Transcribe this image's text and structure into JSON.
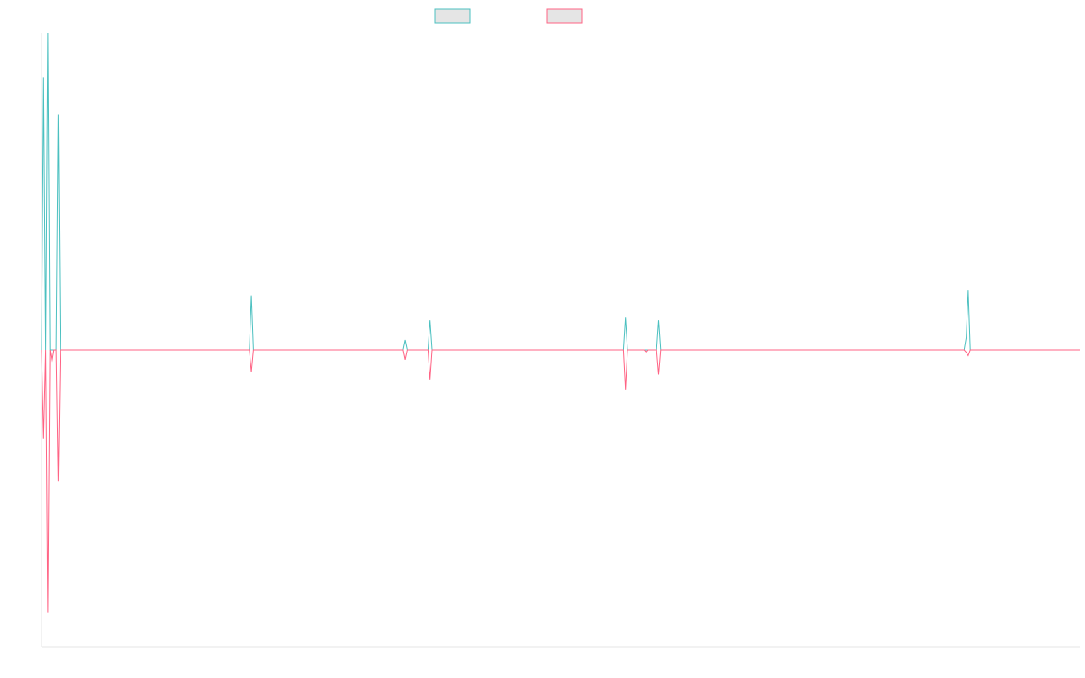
{
  "chart_data": {
    "type": "line",
    "title": "",
    "xlabel": "",
    "ylabel": "",
    "legend_position": "top-center",
    "grid": false,
    "ylim": [
      -6.0,
      6.4
    ],
    "colors": {
      "series_1": "#4bc0c0",
      "series_2": "#ff6384",
      "legend_fill": "#e5e5e5",
      "axis": "#e6e6e6"
    },
    "series": [
      {
        "name": "",
        "x": [
          0.0,
          0.5,
          1.0,
          1.5,
          2.0,
          2.5,
          3.0,
          3.5,
          4.0,
          4.5,
          5.0,
          5.5,
          6.0,
          50.0,
          50.5,
          51.0,
          51.5,
          52.0,
          87.0,
          87.5,
          88.0,
          93.0,
          93.5,
          94.0,
          140.0,
          140.5,
          141.0,
          145.0,
          145.5,
          146.0,
          148.0,
          148.5,
          149.0,
          222.0,
          222.5,
          223.0,
          223.5,
          224.0,
          224.5,
          250.0
        ],
        "values": [
          0.0,
          5.5,
          0.0,
          6.4,
          0.0,
          0.0,
          0.0,
          0.0,
          4.75,
          0.0,
          0.0,
          0.0,
          0.0,
          0.0,
          1.1,
          0.0,
          0.0,
          0.0,
          0.0,
          0.2,
          0.0,
          0.0,
          0.6,
          0.0,
          0.0,
          0.65,
          0.0,
          0.0,
          0.0,
          0.0,
          0.0,
          0.6,
          0.0,
          0.0,
          0.25,
          1.2,
          0.0,
          0.0,
          0.0,
          0.0
        ]
      },
      {
        "name": "",
        "x": [
          0.0,
          0.5,
          1.0,
          1.5,
          2.0,
          2.5,
          3.0,
          3.5,
          4.0,
          4.5,
          5.0,
          5.5,
          6.0,
          50.0,
          50.5,
          51.0,
          51.5,
          52.0,
          87.0,
          87.5,
          88.0,
          93.0,
          93.5,
          94.0,
          140.0,
          140.5,
          141.0,
          145.0,
          145.5,
          146.0,
          148.0,
          148.5,
          149.0,
          222.0,
          222.5,
          223.0,
          223.5,
          224.0,
          224.5,
          250.0
        ],
        "values": [
          0.0,
          -1.8,
          0.0,
          -5.3,
          0.0,
          -0.25,
          0.0,
          0.0,
          -2.65,
          0.0,
          0.0,
          0.0,
          0.0,
          0.0,
          -0.45,
          0.0,
          0.0,
          0.0,
          0.0,
          -0.2,
          0.0,
          0.0,
          -0.6,
          0.0,
          0.0,
          -0.8,
          0.0,
          0.0,
          -0.05,
          0.0,
          0.0,
          -0.5,
          0.0,
          0.0,
          -0.05,
          -0.12,
          0.0,
          0.0,
          0.0,
          0.0
        ]
      }
    ]
  }
}
